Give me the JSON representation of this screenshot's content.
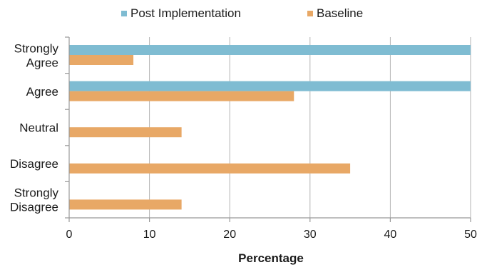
{
  "chart_data": {
    "type": "bar",
    "orientation": "horizontal",
    "categories": [
      "Strongly Agree",
      "Agree",
      "Neutral",
      "Disagree",
      "Strongly Disagree"
    ],
    "category_labels": [
      [
        "Strongly",
        "Agree"
      ],
      [
        "Agree"
      ],
      [
        "Neutral"
      ],
      [
        "Disagree"
      ],
      [
        "Strongly",
        "Disagree"
      ]
    ],
    "series": [
      {
        "name": "Post Implementation",
        "color": "#7fbcd2",
        "values": [
          50,
          50,
          0,
          0,
          0
        ]
      },
      {
        "name": "Baseline",
        "color": "#e8a866",
        "values": [
          8,
          28,
          14,
          35,
          14
        ]
      }
    ],
    "xlabel": "Percentage",
    "ylabel": "",
    "xlim": [
      0,
      50
    ],
    "xticks": [
      0,
      10,
      20,
      30,
      40,
      50
    ],
    "grid": "vertical",
    "legend_position": "top",
    "gridline_color": "#b3b3b3",
    "axis_color": "#999999"
  }
}
